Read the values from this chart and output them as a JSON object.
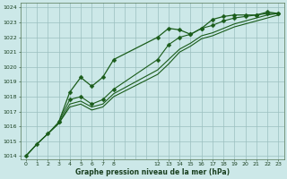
{
  "bg_color": "#cce8e8",
  "grid_color": "#9bbfbf",
  "line_color": "#1a5c1a",
  "marker_color": "#1a5c1a",
  "xlabel": "Graphe pression niveau de la mer (hPa)",
  "xlabel_color": "#1a4020",
  "ylabel_color": "#1a4020",
  "ylim": [
    1013.8,
    1024.3
  ],
  "yticks": [
    1014,
    1015,
    1016,
    1017,
    1018,
    1019,
    1020,
    1021,
    1022,
    1023,
    1024
  ],
  "xlim": [
    -0.5,
    23.5
  ],
  "xtick_positions": [
    0,
    1,
    2,
    3,
    4,
    5,
    6,
    7,
    8,
    12,
    13,
    14,
    15,
    16,
    17,
    18,
    19,
    20,
    21,
    22,
    23
  ],
  "xtick_labels": [
    "0",
    "1",
    "2",
    "3",
    "4",
    "5",
    "6",
    "7",
    "8",
    "12",
    "13",
    "14",
    "15",
    "16",
    "17",
    "18",
    "19",
    "20",
    "21",
    "22",
    "23"
  ],
  "series": [
    {
      "x": [
        0,
        1,
        2,
        3,
        4,
        5,
        6,
        7,
        8,
        12,
        13,
        14,
        15,
        16,
        17,
        18,
        19,
        20,
        21,
        22,
        23
      ],
      "y": [
        1014.0,
        1014.8,
        1015.5,
        1016.2,
        1017.3,
        1017.5,
        1017.1,
        1017.3,
        1018.0,
        1019.5,
        1020.2,
        1021.0,
        1021.4,
        1021.9,
        1022.1,
        1022.4,
        1022.7,
        1022.9,
        1023.1,
        1023.3,
        1023.5
      ],
      "marker": false,
      "lw": 0.8
    },
    {
      "x": [
        0,
        1,
        2,
        3,
        4,
        5,
        6,
        7,
        8,
        12,
        13,
        14,
        15,
        16,
        17,
        18,
        19,
        20,
        21,
        22,
        23
      ],
      "y": [
        1014.0,
        1014.8,
        1015.5,
        1016.2,
        1017.5,
        1017.7,
        1017.3,
        1017.5,
        1018.2,
        1019.8,
        1020.5,
        1021.2,
        1021.6,
        1022.1,
        1022.3,
        1022.6,
        1022.9,
        1023.1,
        1023.3,
        1023.5,
        1023.6
      ],
      "marker": false,
      "lw": 0.8
    },
    {
      "x": [
        0,
        1,
        2,
        3,
        4,
        5,
        6,
        7,
        8,
        12,
        13,
        14,
        15,
        16,
        17,
        18,
        19,
        20,
        21,
        22,
        23
      ],
      "y": [
        1014.0,
        1014.8,
        1015.5,
        1016.3,
        1017.8,
        1018.0,
        1017.5,
        1017.8,
        1018.5,
        1020.5,
        1021.5,
        1022.0,
        1022.2,
        1022.6,
        1022.8,
        1023.1,
        1023.3,
        1023.4,
        1023.5,
        1023.6,
        1023.6
      ],
      "marker": true,
      "lw": 0.8,
      "ms": 2.5
    },
    {
      "x": [
        3,
        4,
        5,
        6,
        7,
        8,
        12,
        13,
        14,
        15,
        16,
        17,
        18,
        19,
        20,
        21,
        22,
        23
      ],
      "y": [
        1016.3,
        1018.3,
        1019.3,
        1018.7,
        1019.3,
        1020.5,
        1022.0,
        1022.6,
        1022.5,
        1022.2,
        1022.6,
        1023.2,
        1023.4,
        1023.5,
        1023.5,
        1023.5,
        1023.7,
        1023.6
      ],
      "marker": true,
      "lw": 0.9,
      "ms": 2.5
    }
  ],
  "grid_all_x": [
    0,
    1,
    2,
    3,
    4,
    5,
    6,
    7,
    8,
    9,
    10,
    11,
    12,
    13,
    14,
    15,
    16,
    17,
    18,
    19,
    20,
    21,
    22,
    23
  ]
}
